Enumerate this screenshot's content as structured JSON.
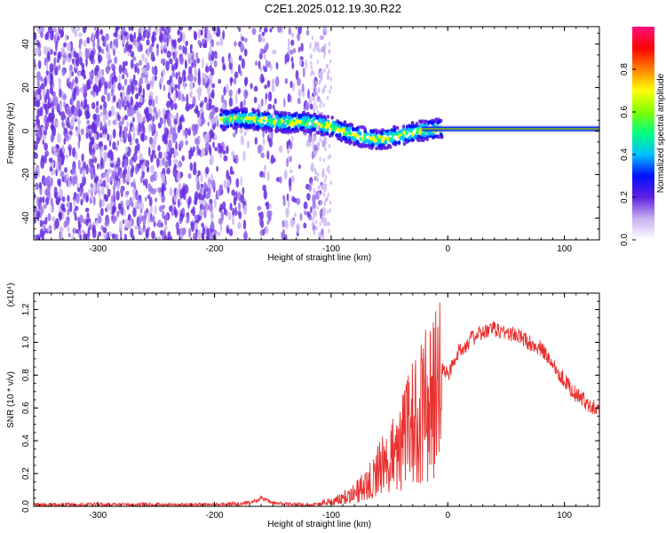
{
  "title": "C2E1.2025.012.19.30.R22",
  "colors": {
    "snr_line": "#e8312f",
    "spectrum_dots": "#6a2fe0",
    "center_line_outer": "#0a1eff",
    "center_line_inner": "#e8312f"
  },
  "chart_data": [
    {
      "type": "heatmap",
      "xlabel": "Height of straight line (km)",
      "ylabel": "Frequency (Hz)",
      "xlim": [
        -355,
        130
      ],
      "ylim": [
        -50,
        48
      ],
      "xticks": [
        -300,
        -200,
        -100,
        0,
        100
      ],
      "yticks": [
        -40,
        -20,
        0,
        20,
        40
      ],
      "xtick_labels": [
        "-300",
        "-200",
        "-100",
        "0",
        "100"
      ],
      "ytick_labels": [
        "-40",
        "-20",
        "0",
        "20",
        "40"
      ],
      "colorbar": {
        "label": "Normalized spectral amplitude",
        "range": [
          0,
          1
        ],
        "ticks": [
          0.0,
          0.2,
          0.4,
          0.6,
          0.8
        ],
        "tick_labels": [
          "0.0",
          "0.2",
          "0.4",
          "0.6",
          "0.8"
        ],
        "colormap": [
          "#ffffff",
          "#c8b0f0",
          "#6020e0",
          "#0010ff",
          "#00c0ff",
          "#00ff80",
          "#80ff00",
          "#ffff00",
          "#ff8000",
          "#ff0000",
          "#ff1080"
        ]
      },
      "ridge": {
        "x": [
          -195,
          -180,
          -160,
          -140,
          -120,
          -100,
          -80,
          -60,
          -40,
          -25,
          -10,
          0,
          20,
          50,
          80,
          110,
          130
        ],
        "y": [
          5,
          6,
          5,
          4,
          4,
          2,
          -2,
          -4,
          -2,
          0,
          1,
          1,
          1,
          1,
          1,
          1,
          1
        ]
      }
    },
    {
      "type": "line",
      "xlabel": "Height of straight line (km)",
      "ylabel": "SNR (10 * v/v)",
      "yscale_label": "(x10⁴)",
      "xlim": [
        -355,
        130
      ],
      "ylim": [
        0,
        1.3
      ],
      "xticks": [
        -300,
        -200,
        -100,
        0,
        100
      ],
      "yticks": [
        0.0,
        0.2,
        0.4,
        0.6,
        0.8,
        1.0,
        1.2
      ],
      "xtick_labels": [
        "-300",
        "-200",
        "-100",
        "0",
        "100"
      ],
      "ytick_labels": [
        "0.0",
        "0.2",
        "0.4",
        "0.6",
        "0.8",
        "1.0",
        "1.2"
      ],
      "series": [
        {
          "x": [
            -355,
            -300,
            -250,
            -200,
            -170,
            -160,
            -150,
            -130,
            -115,
            -100,
            -90,
            -80,
            -70,
            -60,
            -50,
            -40,
            -30,
            -20,
            -10,
            -5,
            0,
            10,
            20,
            30,
            40,
            50,
            60,
            70,
            80,
            90,
            100,
            110,
            120,
            130
          ],
          "y": [
            0.01,
            0.01,
            0.01,
            0.01,
            0.02,
            0.05,
            0.02,
            0.01,
            0.01,
            0.03,
            0.06,
            0.1,
            0.15,
            0.25,
            0.35,
            0.45,
            0.6,
            0.72,
            0.8,
            0.85,
            0.8,
            0.95,
            1.02,
            1.06,
            1.08,
            1.06,
            1.04,
            1.0,
            0.96,
            0.87,
            0.77,
            0.68,
            0.63,
            0.58
          ]
        }
      ]
    }
  ]
}
